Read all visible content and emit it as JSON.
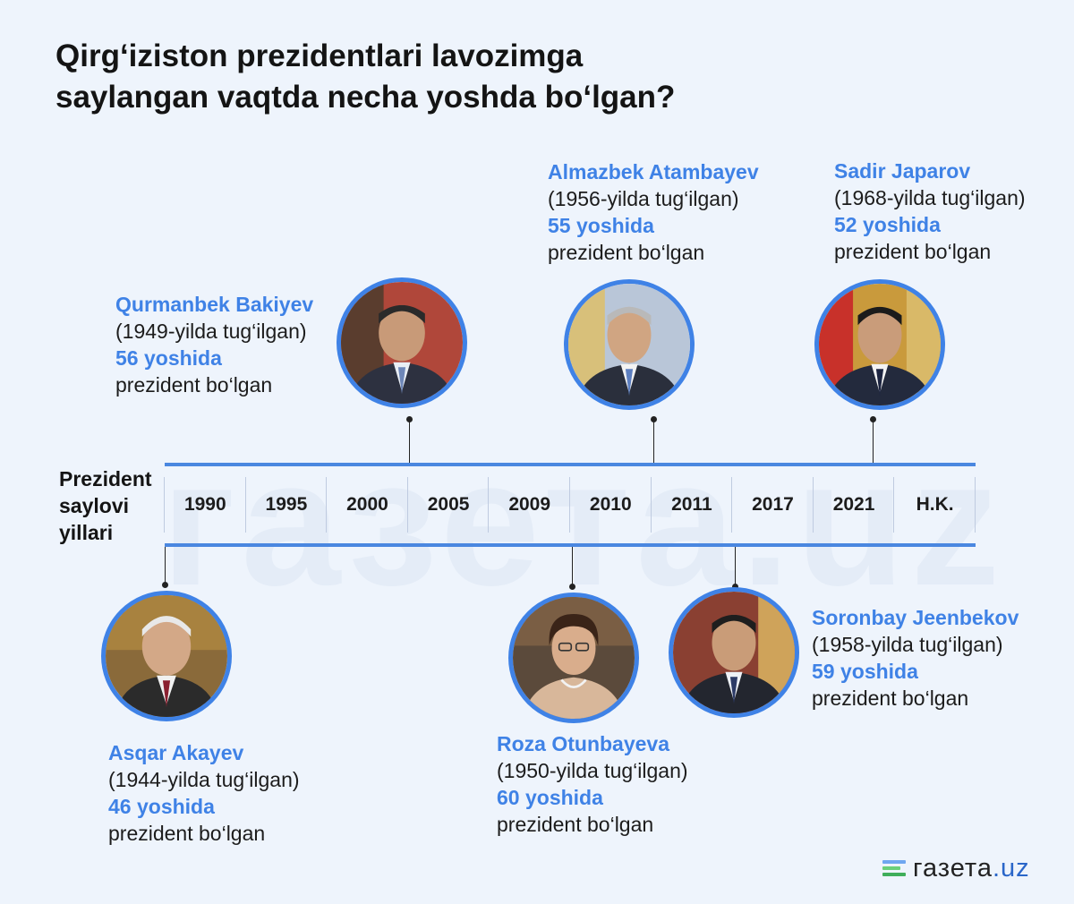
{
  "title": {
    "line1": "Qirg‘iziston prezidentlari lavozimga",
    "line2": "saylangan vaqtda necha yoshda bo‘lgan?"
  },
  "axis_label": {
    "line1": "Prezident",
    "line2": "saylovi",
    "line3": "yillari"
  },
  "years": [
    "1990",
    "1995",
    "2000",
    "2005",
    "2009",
    "2010",
    "2011",
    "2017",
    "2021",
    "H.K."
  ],
  "presidents": [
    {
      "name": "Asqar Akayev",
      "born": "(1944-yilda tug‘ilgan)",
      "age": "46 yoshida",
      "role": "prezident bo‘lgan"
    },
    {
      "name": "Qurmanbek Bakiyev",
      "born": "(1949-yilda tug‘ilgan)",
      "age": "56 yoshida",
      "role": "prezident bo‘lgan"
    },
    {
      "name": "Roza Otunbayeva",
      "born": "(1950-yilda tug‘ilgan)",
      "age": "60 yoshida",
      "role": "prezident bo‘lgan"
    },
    {
      "name": "Almazbek Atambayev",
      "born": "(1956-yilda tug‘ilgan)",
      "age": "55 yoshida",
      "role": "prezident bo‘lgan"
    },
    {
      "name": "Soronbay Jeenbekov",
      "born": "(1958-yilda tug‘ilgan)",
      "age": "59 yoshida",
      "role": "prezident bo‘lgan"
    },
    {
      "name": "Sadir Japarov",
      "born": "(1968-yilda tug‘ilgan)",
      "age": "52 yoshida",
      "role": "prezident bo‘lgan"
    }
  ],
  "watermark": "газета.uz",
  "logo": {
    "main": "газета",
    "tld": ".uz"
  },
  "colors": {
    "accent": "#3f82e6",
    "timeline": "#4a87e0",
    "background": "#eef4fc"
  }
}
